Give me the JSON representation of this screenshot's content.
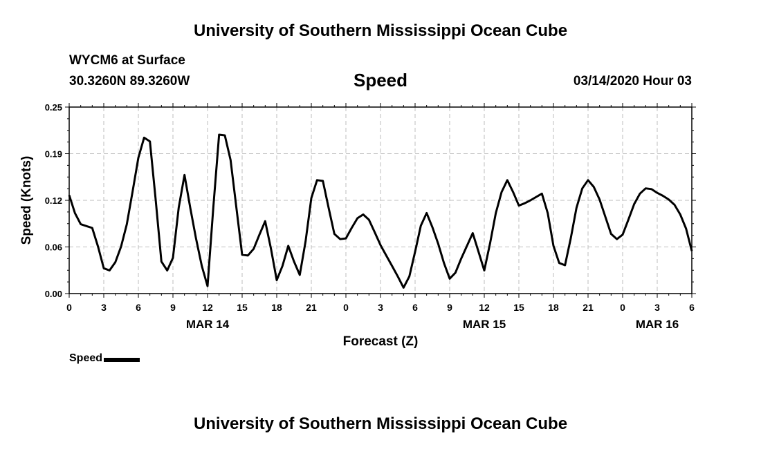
{
  "page": {
    "title": "University of Southern Mississippi Ocean Cube",
    "footer_title": "University of Southern Mississippi Ocean Cube",
    "station": "WYCM6 at Surface",
    "coordinates": "30.3260N 89.3260W",
    "variable": "Speed",
    "datetime": "03/14/2020 Hour 03"
  },
  "chart_data": {
    "type": "line",
    "xlabel": "Forecast (Z)",
    "ylabel": "Speed (Knots)",
    "ylim": [
      0,
      0.25
    ],
    "yticks": [
      "0.00",
      "0.06",
      "0.12",
      "0.19",
      "0.25"
    ],
    "xlim": [
      0,
      54
    ],
    "xticks": [
      {
        "x": 0,
        "label": "0"
      },
      {
        "x": 3,
        "label": "3"
      },
      {
        "x": 6,
        "label": "6"
      },
      {
        "x": 9,
        "label": "9"
      },
      {
        "x": 12,
        "label": "12"
      },
      {
        "x": 15,
        "label": "15"
      },
      {
        "x": 18,
        "label": "18"
      },
      {
        "x": 21,
        "label": "21"
      },
      {
        "x": 24,
        "label": "0"
      },
      {
        "x": 27,
        "label": "3"
      },
      {
        "x": 30,
        "label": "6"
      },
      {
        "x": 33,
        "label": "9"
      },
      {
        "x": 36,
        "label": "12"
      },
      {
        "x": 39,
        "label": "15"
      },
      {
        "x": 42,
        "label": "18"
      },
      {
        "x": 45,
        "label": "21"
      },
      {
        "x": 48,
        "label": "0"
      },
      {
        "x": 51,
        "label": "3"
      },
      {
        "x": 54,
        "label": "6"
      }
    ],
    "day_labels": [
      {
        "x": 12,
        "label": "MAR 14"
      },
      {
        "x": 36,
        "label": "MAR 15"
      },
      {
        "x": 51,
        "label": "MAR 16"
      }
    ],
    "grid": true,
    "legend": {
      "position": "bottom-left",
      "label": "Speed"
    },
    "series": [
      {
        "name": "Speed",
        "color": "#000000",
        "points": [
          [
            0,
            0.132
          ],
          [
            0.5,
            0.108
          ],
          [
            1,
            0.093
          ],
          [
            2,
            0.088
          ],
          [
            2.5,
            0.063
          ],
          [
            3,
            0.034
          ],
          [
            3.5,
            0.031
          ],
          [
            4,
            0.042
          ],
          [
            4.5,
            0.063
          ],
          [
            5,
            0.093
          ],
          [
            5.5,
            0.137
          ],
          [
            6,
            0.182
          ],
          [
            6.5,
            0.209
          ],
          [
            7,
            0.204
          ],
          [
            7.5,
            0.126
          ],
          [
            8,
            0.043
          ],
          [
            8.5,
            0.031
          ],
          [
            9,
            0.048
          ],
          [
            9.5,
            0.115
          ],
          [
            10,
            0.159
          ],
          [
            10.5,
            0.115
          ],
          [
            11,
            0.074
          ],
          [
            11.5,
            0.037
          ],
          [
            12,
            0.01
          ],
          [
            12.5,
            0.115
          ],
          [
            13,
            0.213
          ],
          [
            13.5,
            0.212
          ],
          [
            14,
            0.179
          ],
          [
            14.5,
            0.115
          ],
          [
            15,
            0.052
          ],
          [
            15.5,
            0.051
          ],
          [
            16,
            0.06
          ],
          [
            16.5,
            0.079
          ],
          [
            17,
            0.097
          ],
          [
            17.5,
            0.06
          ],
          [
            18,
            0.018
          ],
          [
            18.5,
            0.037
          ],
          [
            19,
            0.064
          ],
          [
            19.5,
            0.043
          ],
          [
            20,
            0.025
          ],
          [
            20.5,
            0.07
          ],
          [
            21,
            0.128
          ],
          [
            21.5,
            0.152
          ],
          [
            22,
            0.151
          ],
          [
            22.5,
            0.115
          ],
          [
            23,
            0.08
          ],
          [
            23.5,
            0.073
          ],
          [
            24,
            0.074
          ],
          [
            24.5,
            0.088
          ],
          [
            25,
            0.101
          ],
          [
            25.5,
            0.106
          ],
          [
            26,
            0.099
          ],
          [
            26.5,
            0.082
          ],
          [
            27,
            0.065
          ],
          [
            27.5,
            0.051
          ],
          [
            28,
            0.037
          ],
          [
            28.5,
            0.023
          ],
          [
            29,
            0.008
          ],
          [
            29.5,
            0.023
          ],
          [
            30,
            0.056
          ],
          [
            30.5,
            0.091
          ],
          [
            31,
            0.108
          ],
          [
            31.5,
            0.089
          ],
          [
            32,
            0.067
          ],
          [
            32.5,
            0.041
          ],
          [
            33,
            0.02
          ],
          [
            33.5,
            0.028
          ],
          [
            34,
            0.047
          ],
          [
            34.5,
            0.064
          ],
          [
            35,
            0.081
          ],
          [
            35.5,
            0.056
          ],
          [
            36,
            0.031
          ],
          [
            36.5,
            0.067
          ],
          [
            37,
            0.108
          ],
          [
            37.5,
            0.136
          ],
          [
            38,
            0.152
          ],
          [
            38.5,
            0.136
          ],
          [
            39,
            0.118
          ],
          [
            39.5,
            0.121
          ],
          [
            40,
            0.125
          ],
          [
            41,
            0.134
          ],
          [
            41.5,
            0.108
          ],
          [
            42,
            0.064
          ],
          [
            42.5,
            0.041
          ],
          [
            43,
            0.038
          ],
          [
            43.5,
            0.074
          ],
          [
            44,
            0.115
          ],
          [
            44.5,
            0.141
          ],
          [
            45,
            0.152
          ],
          [
            45.5,
            0.143
          ],
          [
            46,
            0.126
          ],
          [
            46.5,
            0.103
          ],
          [
            47,
            0.08
          ],
          [
            47.5,
            0.073
          ],
          [
            48,
            0.079
          ],
          [
            48.5,
            0.099
          ],
          [
            49,
            0.12
          ],
          [
            49.5,
            0.134
          ],
          [
            50,
            0.141
          ],
          [
            50.5,
            0.14
          ],
          [
            51,
            0.135
          ],
          [
            51.5,
            0.131
          ],
          [
            52,
            0.126
          ],
          [
            52.5,
            0.119
          ],
          [
            53,
            0.106
          ],
          [
            53.5,
            0.087
          ],
          [
            54,
            0.057
          ]
        ]
      }
    ]
  }
}
